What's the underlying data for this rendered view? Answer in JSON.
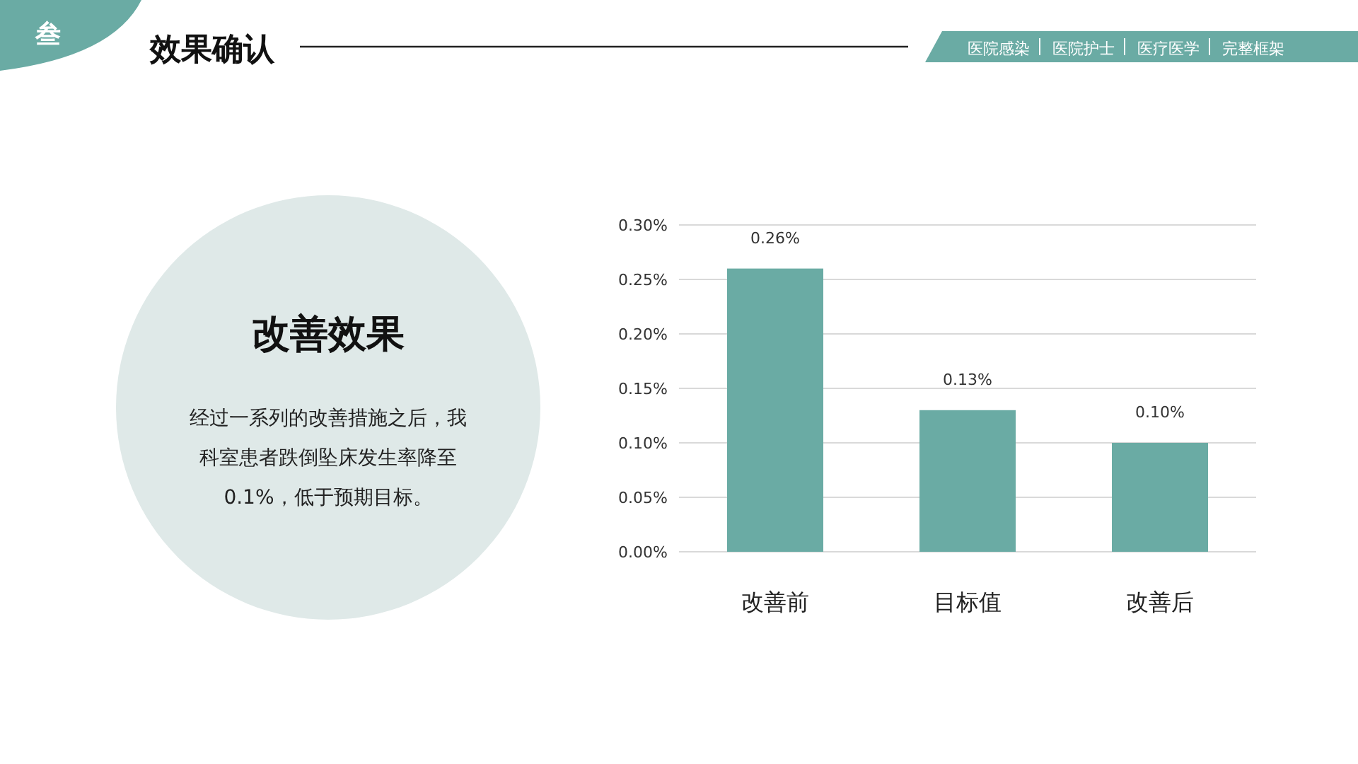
{
  "chart_data": {
    "type": "bar",
    "title": "效果确认",
    "subtitle": "改善效果",
    "annotations": [
      "叁",
      "医院感染",
      "医院护士",
      "医疗医学",
      "完整框架",
      "经过一系列的改善措施之后，我科室患者跌倒坠床发生率降至0.1%，低于预期目标。"
    ],
    "categories": [
      "改善前",
      "目标值",
      "改善后"
    ],
    "values": [
      0.26,
      0.13,
      0.1
    ],
    "value_labels": [
      "0.26%",
      "0.13%",
      "0.10%"
    ],
    "color": "#6aaba4",
    "ylim": [
      0,
      0.3
    ],
    "yticks": [
      {
        "value": 0,
        "label": "0.00%"
      },
      {
        "value": 0.05,
        "label": "0.05%"
      },
      {
        "value": 0.1,
        "label": "0.10%"
      },
      {
        "value": 0.15,
        "label": "0.15%"
      },
      {
        "value": 0.2,
        "label": "0.20%"
      },
      {
        "value": 0.25,
        "label": "0.25%"
      },
      {
        "value": 0.3,
        "label": "0.30%"
      }
    ],
    "grid": "y",
    "legend": false
  }
}
